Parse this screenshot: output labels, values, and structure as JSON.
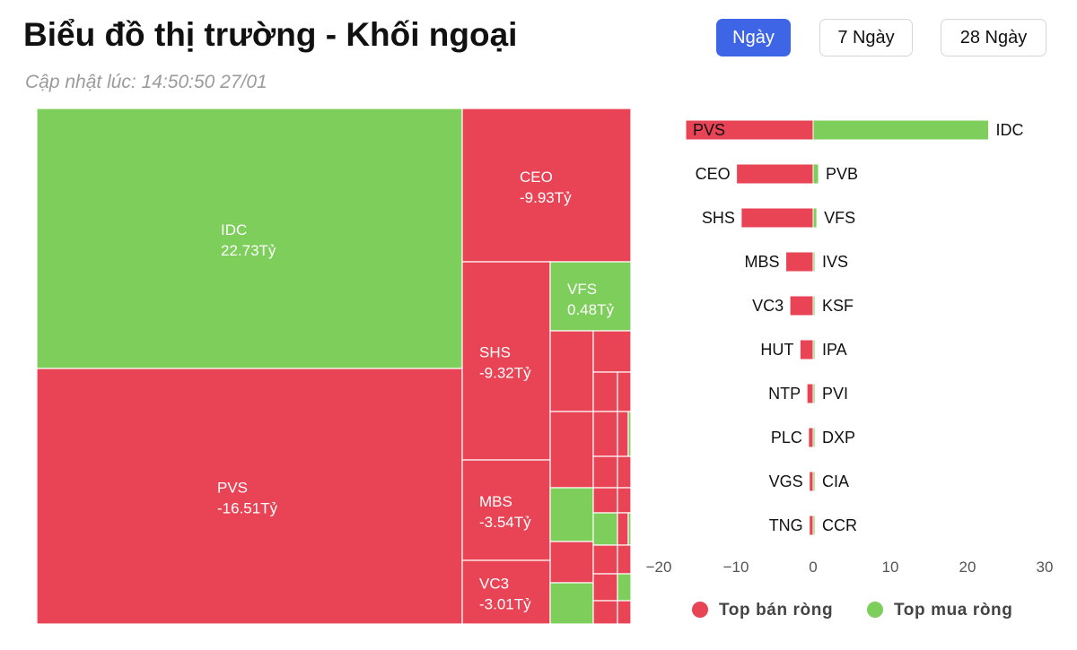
{
  "header": {
    "title": "Biểu đồ thị trường - Khối ngoại",
    "updated": "Cập nhật lúc: 14:50:50 27/01"
  },
  "tabs": [
    {
      "label": "Ngày",
      "active": true
    },
    {
      "label": "7 Ngày",
      "active": false
    },
    {
      "label": "28 Ngày",
      "active": false
    }
  ],
  "colors": {
    "sell": "#e84455",
    "buy": "#7dce5a",
    "accent": "#3f65e7"
  },
  "chart_data": [
    {
      "type": "treemap",
      "unit": "Tỷ",
      "labeled_tiles": [
        {
          "name": "IDC",
          "value": 22.73,
          "label": "22.73Tỷ"
        },
        {
          "name": "PVS",
          "value": -16.51,
          "label": "-16.51Tỷ"
        },
        {
          "name": "CEO",
          "value": -9.93,
          "label": "-9.93Tỷ"
        },
        {
          "name": "SHS",
          "value": -9.32,
          "label": "-9.32Tỷ"
        },
        {
          "name": "VFS",
          "value": 0.48,
          "label": "0.48Tỷ"
        },
        {
          "name": "MBS",
          "value": -3.54,
          "label": "-3.54Tỷ"
        },
        {
          "name": "VC3",
          "value": -3.01,
          "label": "-3.01Tỷ"
        }
      ]
    },
    {
      "type": "bar",
      "orientation": "horizontal",
      "xlim": [
        -20,
        30
      ],
      "xticks": [
        "−20",
        "−10",
        "0",
        "10",
        "20",
        "30"
      ],
      "xtick_values": [
        -20,
        -10,
        0,
        10,
        20,
        30
      ],
      "rows": [
        {
          "sell": "PVS",
          "sell_value": -16.51,
          "buy": "IDC",
          "buy_value": 22.73
        },
        {
          "sell": "CEO",
          "sell_value": -9.93,
          "buy": "PVB",
          "buy_value": 0.7
        },
        {
          "sell": "SHS",
          "sell_value": -9.32,
          "buy": "VFS",
          "buy_value": 0.48
        },
        {
          "sell": "MBS",
          "sell_value": -3.54,
          "buy": "IVS",
          "buy_value": 0.15
        },
        {
          "sell": "VC3",
          "sell_value": -3.01,
          "buy": "KSF",
          "buy_value": 0.12
        },
        {
          "sell": "HUT",
          "sell_value": -1.7,
          "buy": "IPA",
          "buy_value": 0.1
        },
        {
          "sell": "NTP",
          "sell_value": -0.8,
          "buy": "PVI",
          "buy_value": 0.08
        },
        {
          "sell": "PLC",
          "sell_value": -0.6,
          "buy": "DXP",
          "buy_value": 0.06
        },
        {
          "sell": "VGS",
          "sell_value": -0.5,
          "buy": "CIA",
          "buy_value": 0.05
        },
        {
          "sell": "TNG",
          "sell_value": -0.5,
          "buy": "CCR",
          "buy_value": 0.04
        }
      ],
      "legend": [
        {
          "label": "Top bán ròng",
          "series": "sell"
        },
        {
          "label": "Top mua ròng",
          "series": "buy"
        }
      ],
      "legend_position": "bottom"
    }
  ]
}
